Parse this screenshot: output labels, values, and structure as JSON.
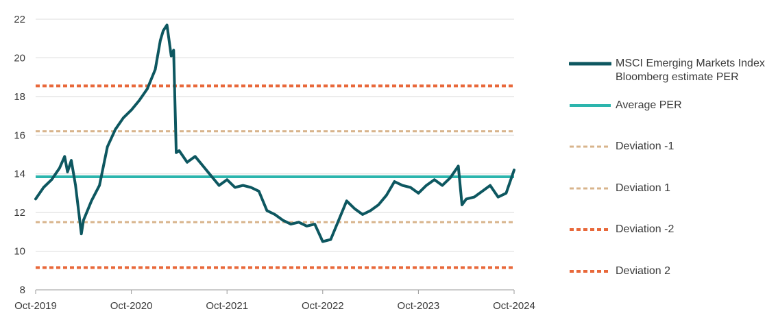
{
  "chart_data": {
    "type": "line",
    "title": "",
    "xlabel": "",
    "ylabel": "",
    "x_ticks": [
      "Oct-2019",
      "Oct-2020",
      "Oct-2021",
      "Oct-2022",
      "Oct-2023",
      "Oct-2024"
    ],
    "y_ticks": [
      "8",
      "10",
      "12",
      "14",
      "16",
      "18",
      "20",
      "22"
    ],
    "xlim": [
      "2019-10",
      "2024-10"
    ],
    "ylim": [
      8,
      22
    ],
    "grid": "horizontal",
    "legend_position": "right",
    "series": [
      {
        "name": "MSCI Emerging Markets Index\nBloomberg estimate PER",
        "style": "solid-thick",
        "color": "#0d5760",
        "points": [
          [
            "2019-10",
            12.7
          ],
          [
            "2019-11",
            13.3
          ],
          [
            "2019-12",
            13.7
          ],
          [
            "2020-01",
            14.3
          ],
          [
            "2020-01-20",
            14.9
          ],
          [
            "2020-02",
            14.1
          ],
          [
            "2020-02-15",
            14.7
          ],
          [
            "2020-03",
            13.4
          ],
          [
            "2020-03-23",
            10.9
          ],
          [
            "2020-04",
            11.6
          ],
          [
            "2020-05",
            12.6
          ],
          [
            "2020-06",
            13.4
          ],
          [
            "2020-07",
            15.4
          ],
          [
            "2020-08",
            16.3
          ],
          [
            "2020-09",
            16.9
          ],
          [
            "2020-10",
            17.3
          ],
          [
            "2020-11",
            17.8
          ],
          [
            "2020-12",
            18.4
          ],
          [
            "2021-01",
            19.4
          ],
          [
            "2021-01-20",
            20.9
          ],
          [
            "2021-02",
            21.4
          ],
          [
            "2021-02-15",
            21.7
          ],
          [
            "2021-03",
            20.1
          ],
          [
            "2021-03-10",
            20.4
          ],
          [
            "2021-03-20",
            15.1
          ],
          [
            "2021-04",
            15.2
          ],
          [
            "2021-05",
            14.6
          ],
          [
            "2021-06",
            14.9
          ],
          [
            "2021-07",
            14.4
          ],
          [
            "2021-08",
            13.9
          ],
          [
            "2021-09",
            13.4
          ],
          [
            "2021-10",
            13.7
          ],
          [
            "2021-11",
            13.3
          ],
          [
            "2021-12",
            13.4
          ],
          [
            "2022-01",
            13.3
          ],
          [
            "2022-02",
            13.1
          ],
          [
            "2022-03",
            12.1
          ],
          [
            "2022-04",
            11.9
          ],
          [
            "2022-05",
            11.6
          ],
          [
            "2022-06",
            11.4
          ],
          [
            "2022-07",
            11.5
          ],
          [
            "2022-08",
            11.3
          ],
          [
            "2022-09",
            11.4
          ],
          [
            "2022-10",
            10.5
          ],
          [
            "2022-11",
            10.6
          ],
          [
            "2022-12",
            11.6
          ],
          [
            "2023-01",
            12.6
          ],
          [
            "2023-02",
            12.2
          ],
          [
            "2023-03",
            11.9
          ],
          [
            "2023-04",
            12.1
          ],
          [
            "2023-05",
            12.4
          ],
          [
            "2023-06",
            12.9
          ],
          [
            "2023-07",
            13.6
          ],
          [
            "2023-08",
            13.4
          ],
          [
            "2023-09",
            13.3
          ],
          [
            "2023-10",
            13.0
          ],
          [
            "2023-11",
            13.4
          ],
          [
            "2023-12",
            13.7
          ],
          [
            "2024-01",
            13.4
          ],
          [
            "2024-02",
            13.8
          ],
          [
            "2024-03",
            14.4
          ],
          [
            "2024-03-15",
            12.4
          ],
          [
            "2024-04",
            12.7
          ],
          [
            "2024-05",
            12.8
          ],
          [
            "2024-06",
            13.1
          ],
          [
            "2024-07",
            13.4
          ],
          [
            "2024-08",
            12.8
          ],
          [
            "2024-09",
            13.0
          ],
          [
            "2024-10",
            14.2
          ]
        ]
      },
      {
        "name": "Average PER",
        "style": "solid",
        "color": "#2cb5ad",
        "value": 13.85
      },
      {
        "name": "Deviation -1",
        "style": "dashed",
        "color": "#d8b48c",
        "value": 11.5
      },
      {
        "name": "Deviation 1",
        "style": "dashed",
        "color": "#d8b48c",
        "value": 16.2
      },
      {
        "name": "Deviation -2",
        "style": "dashed-thick",
        "color": "#e8683a",
        "value": 9.15
      },
      {
        "name": "Deviation 2",
        "style": "dashed-thick",
        "color": "#e8683a",
        "value": 18.55
      }
    ]
  }
}
